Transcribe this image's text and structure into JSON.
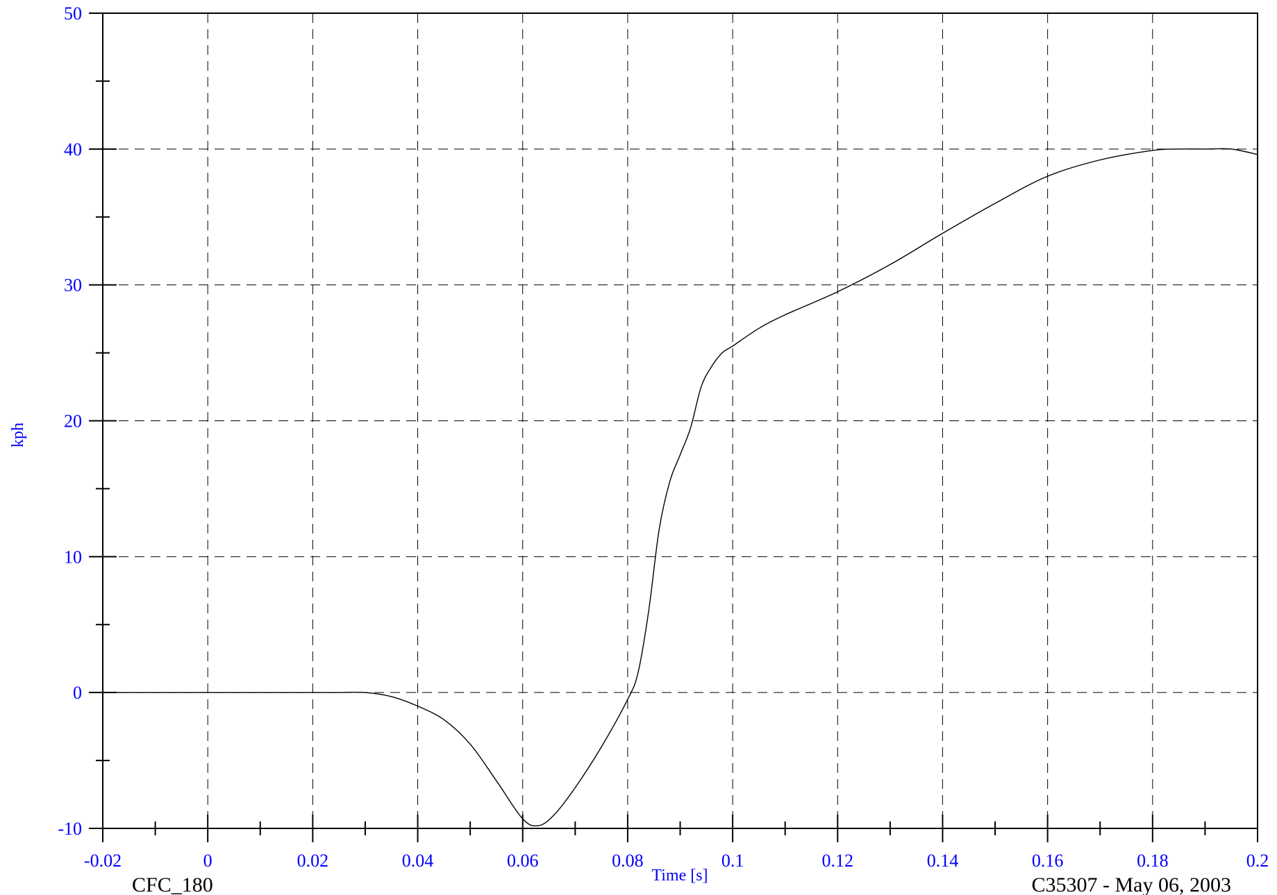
{
  "chart_data": {
    "type": "line",
    "title": "",
    "xlabel": "Time [s]",
    "ylabel": "kph",
    "xlim": [
      -0.02,
      0.2
    ],
    "ylim": [
      -10,
      50
    ],
    "grid": true,
    "x_ticks": [
      -0.02,
      0,
      0.02,
      0.04,
      0.06,
      0.08,
      0.1,
      0.12,
      0.14,
      0.16,
      0.18,
      0.2
    ],
    "x_tick_labels": [
      "-0.02",
      "0",
      "0.02",
      "0.04",
      "0.06",
      "0.08",
      "0.1",
      "0.12",
      "0.14",
      "0.16",
      "0.18",
      "0.2"
    ],
    "y_ticks": [
      -10,
      0,
      10,
      20,
      30,
      40,
      50
    ],
    "y_tick_labels": [
      "-10",
      "0",
      "10",
      "20",
      "30",
      "40",
      "50"
    ],
    "x_minor_ticks": [
      -0.01,
      0.01,
      0.03,
      0.05,
      0.07,
      0.09,
      0.11,
      0.13,
      0.15,
      0.17,
      0.19
    ],
    "y_minor_ticks": [
      -5,
      5,
      15,
      25,
      35,
      45
    ],
    "series": [
      {
        "x": [
          -0.02,
          -0.01,
          0,
          0.01,
          0.02,
          0.025,
          0.03,
          0.035,
          0.04,
          0.045,
          0.05,
          0.055,
          0.06,
          0.063,
          0.066,
          0.07,
          0.075,
          0.08,
          0.082,
          0.084,
          0.086,
          0.088,
          0.09,
          0.092,
          0.094,
          0.096,
          0.098,
          0.1,
          0.105,
          0.11,
          0.12,
          0.13,
          0.14,
          0.15,
          0.16,
          0.17,
          0.18,
          0.185,
          0.19,
          0.195,
          0.2
        ],
        "y": [
          0,
          0,
          0,
          0,
          0,
          0,
          0,
          -0.3,
          -1.0,
          -2.0,
          -3.8,
          -6.5,
          -9.3,
          -9.8,
          -9.0,
          -7.0,
          -4.0,
          -0.5,
          1.5,
          6.0,
          12.0,
          15.5,
          17.5,
          19.5,
          22.5,
          24.0,
          25.0,
          25.5,
          26.8,
          27.8,
          29.5,
          31.5,
          33.8,
          36.0,
          38.0,
          39.2,
          39.9,
          40.0,
          40.0,
          40.0,
          39.6
        ]
      }
    ]
  },
  "footer": {
    "left": "CFC_180",
    "right": "C35307 - May 06, 2003"
  }
}
